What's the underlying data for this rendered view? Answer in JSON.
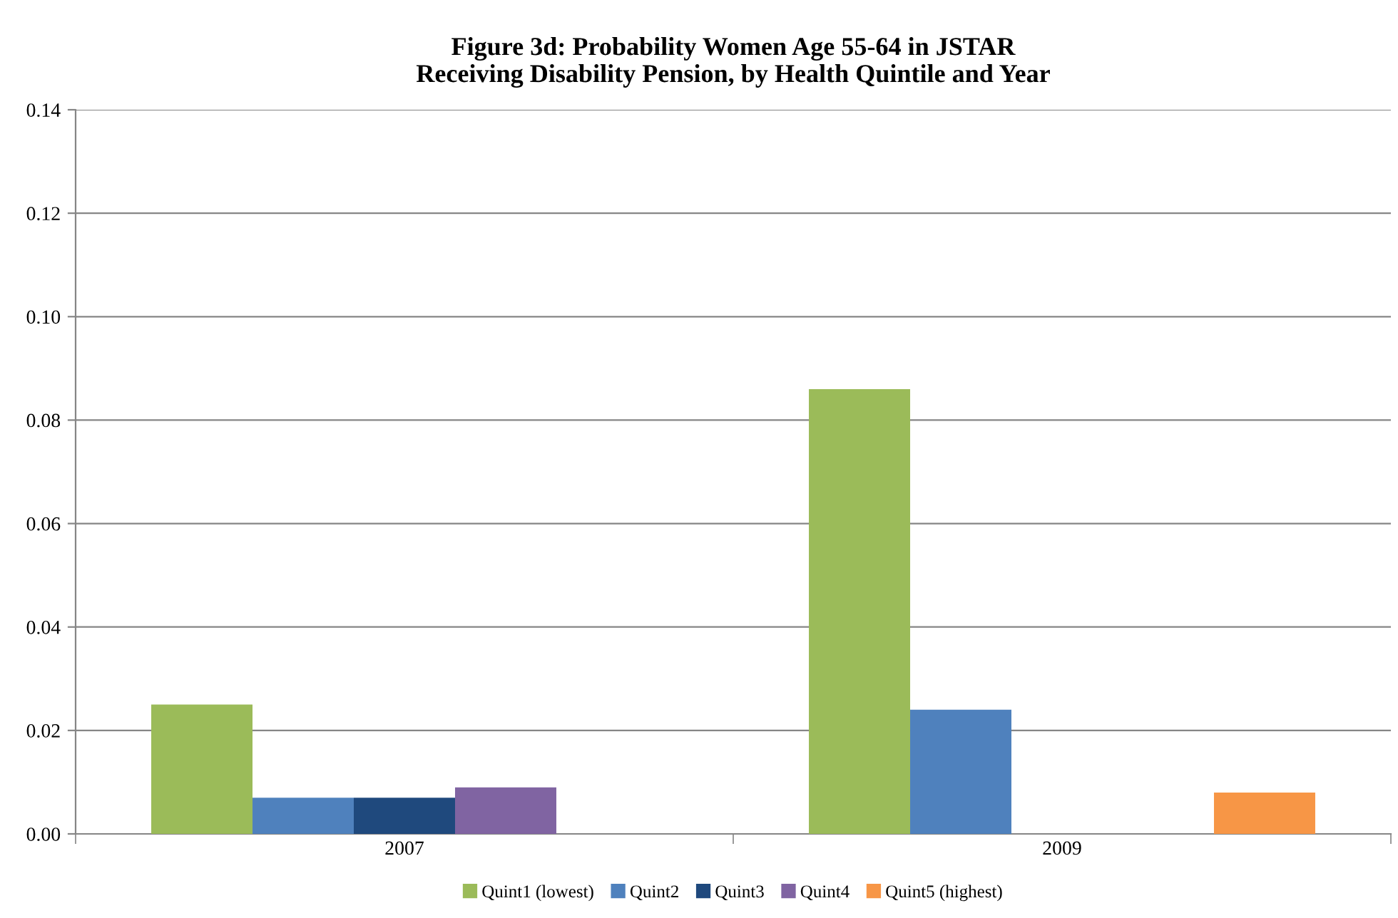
{
  "chart_data": {
    "type": "bar",
    "title": "Figure 3d: Probability Women Age 55-64 in JSTAR\nReceiving Disability Pension, by Health Quintile and Year",
    "categories": [
      "2007",
      "2009"
    ],
    "series": [
      {
        "name": "Quint1 (lowest)",
        "color": "#9bbb59",
        "values": [
          0.025,
          0.086
        ]
      },
      {
        "name": "Quint2",
        "color": "#4f81bd",
        "values": [
          0.007,
          0.024
        ]
      },
      {
        "name": "Quint3",
        "color": "#1f497d",
        "values": [
          0.007,
          null
        ]
      },
      {
        "name": "Quint4",
        "color": "#8064a2",
        "values": [
          0.009,
          null
        ]
      },
      {
        "name": "Quint5 (highest)",
        "color": "#f79646",
        "values": [
          null,
          0.008
        ]
      }
    ],
    "ylim": [
      0,
      0.14
    ],
    "yticks": [
      {
        "value": 0,
        "label": "0.00"
      },
      {
        "value": 0.02,
        "label": "0.02"
      },
      {
        "value": 0.04,
        "label": "0.04"
      },
      {
        "value": 0.06,
        "label": "0.06"
      },
      {
        "value": 0.08,
        "label": "0.08"
      },
      {
        "value": 0.1,
        "label": "0.10"
      },
      {
        "value": 0.12,
        "label": "0.12"
      },
      {
        "value": 0.14,
        "label": "0.14"
      }
    ],
    "grid": "y",
    "legend": "bottom"
  }
}
